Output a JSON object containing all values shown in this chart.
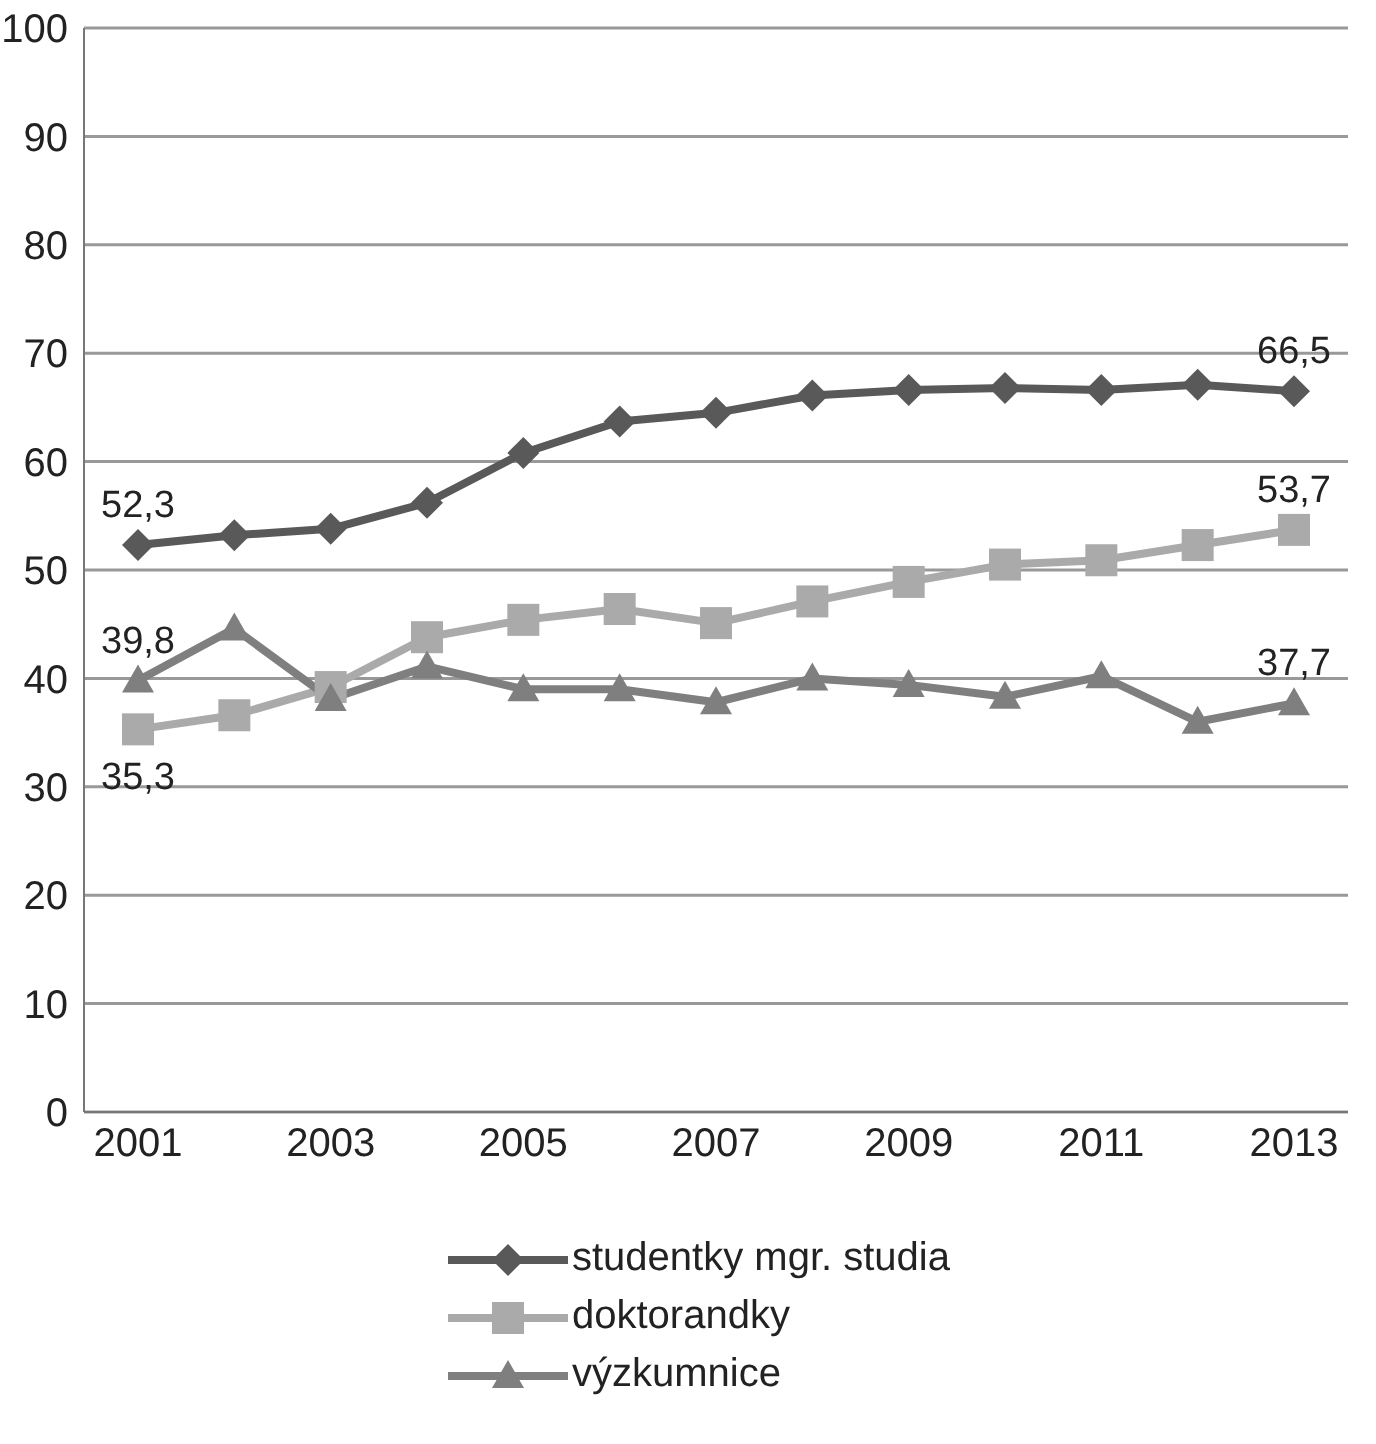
{
  "chart_data": {
    "type": "line",
    "categories": [
      "2001",
      null,
      "2003",
      null,
      "2005",
      null,
      "2007",
      null,
      "2009",
      null,
      "2011",
      null,
      "2013"
    ],
    "series": [
      {
        "name": "studentky mgr. studia",
        "color": "#595959",
        "marker": "diamond",
        "values": [
          52.3,
          53.2,
          53.8,
          56.2,
          60.8,
          63.7,
          64.5,
          66.1,
          66.6,
          66.8,
          66.6,
          67.1,
          66.5
        ],
        "value_labels": [
          "52,3",
          null,
          null,
          null,
          null,
          null,
          null,
          null,
          null,
          null,
          null,
          null,
          "66,5"
        ]
      },
      {
        "name": "doktorandky",
        "color": "#aaaaaa",
        "marker": "square",
        "values": [
          35.3,
          36.6,
          39.2,
          43.8,
          45.4,
          46.4,
          45.1,
          47.1,
          48.9,
          50.5,
          50.9,
          52.3,
          53.7
        ],
        "value_labels": [
          "35,3",
          null,
          null,
          null,
          null,
          null,
          null,
          null,
          null,
          null,
          null,
          null,
          "53,7"
        ]
      },
      {
        "name": "výzkumnice",
        "color": "#7f7f7f",
        "marker": "triangle",
        "values": [
          39.8,
          44.6,
          38.1,
          41.1,
          39.0,
          39.0,
          37.8,
          40.0,
          39.4,
          38.3,
          40.2,
          36.0,
          37.7
        ],
        "value_labels": [
          "39,8",
          null,
          null,
          null,
          null,
          null,
          null,
          null,
          null,
          null,
          null,
          null,
          "37,7"
        ]
      }
    ],
    "ylim": [
      0,
      100
    ],
    "yticks": [
      0,
      10,
      20,
      30,
      40,
      50,
      60,
      70,
      80,
      90,
      100
    ],
    "grid": "y",
    "legend": "bottom"
  }
}
